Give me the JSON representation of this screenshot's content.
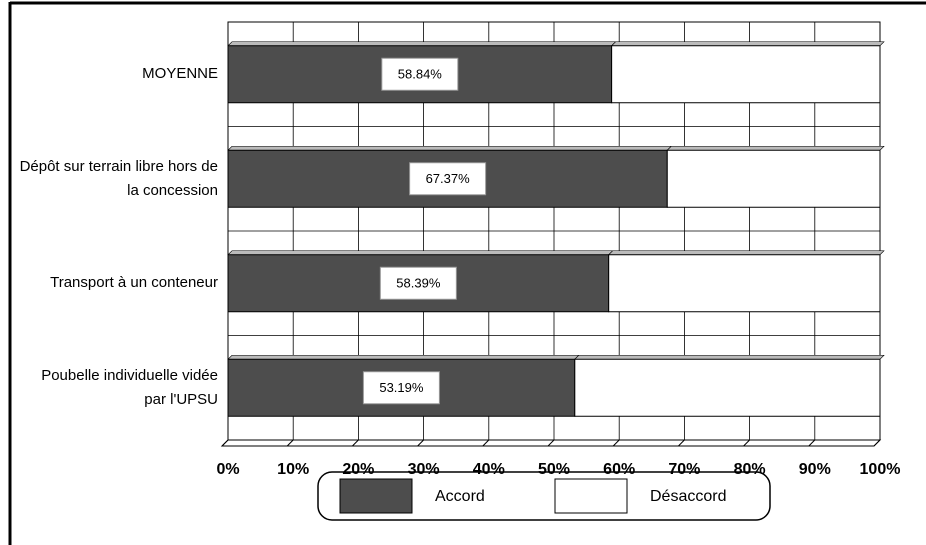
{
  "chart_data": {
    "type": "bar",
    "orientation": "horizontal",
    "stacked": true,
    "categories": [
      "MOYENNE",
      "Dépôt sur terrain libre hors de la concession",
      "Transport à un conteneur",
      "Poubelle individuelle vidée par l'UPSU"
    ],
    "series": [
      {
        "name": "Accord",
        "color": "#4d4d4d",
        "values": [
          58.84,
          67.37,
          58.39,
          53.19
        ],
        "value_labels": [
          "58.84%",
          "67.37%",
          "58.39%",
          "53.19%"
        ]
      },
      {
        "name": "Désaccord",
        "color": "#ffffff",
        "values": [
          41.16,
          32.63,
          41.61,
          46.81
        ]
      }
    ],
    "xlim": [
      0,
      100
    ],
    "xticks": [
      {
        "value": 0,
        "label": "0%"
      },
      {
        "value": 10,
        "label": "10%"
      },
      {
        "value": 20,
        "label": "20%"
      },
      {
        "value": 30,
        "label": "30%"
      },
      {
        "value": 40,
        "label": "40%"
      },
      {
        "value": 50,
        "label": "50%"
      },
      {
        "value": 60,
        "label": "60%"
      },
      {
        "value": 70,
        "label": "70%"
      },
      {
        "value": 80,
        "label": "80%"
      },
      {
        "value": 90,
        "label": "90%"
      },
      {
        "value": 100,
        "label": "100%"
      }
    ],
    "grid": true,
    "legend": "bottom"
  }
}
